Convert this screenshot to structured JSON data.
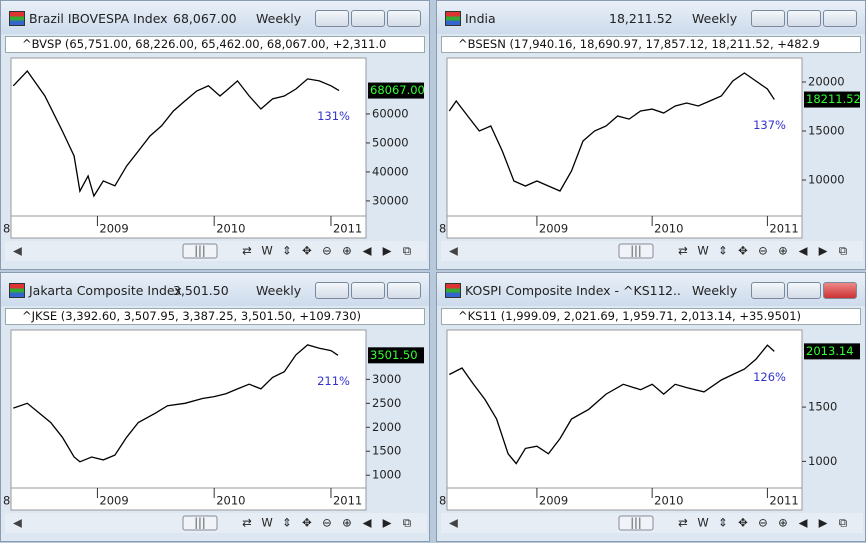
{
  "windows": [
    {
      "title": "Brazil IBOVESPA Index",
      "price": "68,067.00",
      "interval": "Weekly",
      "subheader": "^BVSP (65,751.00, 68,226.00, 65,462.00, 68,067.00, +2,311.0"
    },
    {
      "title": "India",
      "price": "18,211.52",
      "interval": "Weekly",
      "subheader": "^BSESN (17,940.16, 18,690.97, 17,857.12, 18,211.52, +482.9"
    },
    {
      "title": "Jakarta Composite Index",
      "price": "3,501.50",
      "interval": "Weekly",
      "subheader": "^JKSE (3,392.60, 3,507.95, 3,387.25, 3,501.50, +109.730)"
    },
    {
      "title": "KOSPI Composite Index - ^KS11",
      "price": "2..",
      "interval": "Weekly",
      "subheader": "^KS11 (1,999.09, 2,021.69, 1,959.71, 2,013.14, +35.9501)"
    }
  ],
  "toolbar": [
    "⇄",
    "W",
    "⇕",
    "✥",
    "⊖",
    "⊕",
    "◀",
    "▶",
    "⧉"
  ],
  "scroll_thumb": "|||",
  "chart_data": [
    {
      "type": "line",
      "color": "#000000",
      "annotation": "131%",
      "last_label": "68067.00",
      "x": [
        2008.28,
        2008.4,
        2008.55,
        2008.7,
        2008.8,
        2008.85,
        2008.92,
        2008.97,
        2009.05,
        2009.15,
        2009.25,
        2009.35,
        2009.45,
        2009.55,
        2009.65,
        2009.75,
        2009.85,
        2009.95,
        2010.05,
        2010.1,
        2010.2,
        2010.3,
        2010.4,
        2010.5,
        2010.6,
        2010.7,
        2010.8,
        2010.9,
        2011.0,
        2011.07
      ],
      "values": [
        69700,
        74800,
        66200,
        54100,
        45500,
        33400,
        38600,
        31700,
        36900,
        35200,
        42000,
        47200,
        52400,
        55900,
        61000,
        64500,
        67900,
        69700,
        66200,
        67900,
        71400,
        66200,
        61700,
        65200,
        66200,
        68600,
        72100,
        71400,
        69700,
        68067
      ],
      "xlim": [
        2008.26,
        2011.3
      ],
      "xticks": [
        {
          "value": 2008,
          "label": "8"
        },
        2009,
        2010,
        2011
      ],
      "ylim": [
        24800,
        79300
      ],
      "yticks": [
        30000,
        40000,
        50000,
        60000
      ]
    },
    {
      "type": "line",
      "color": "#000000",
      "annotation": "137%",
      "last_label": "18211.52",
      "x": [
        2008.24,
        2008.3,
        2008.4,
        2008.5,
        2008.6,
        2008.7,
        2008.8,
        2008.9,
        2009.0,
        2009.1,
        2009.2,
        2009.3,
        2009.4,
        2009.5,
        2009.6,
        2009.7,
        2009.8,
        2009.9,
        2010.0,
        2010.1,
        2010.2,
        2010.3,
        2010.4,
        2010.5,
        2010.6,
        2010.7,
        2010.8,
        2010.9,
        2011.0,
        2011.06
      ],
      "values": [
        17040,
        18060,
        16530,
        15000,
        15510,
        12960,
        9900,
        9390,
        9900,
        9390,
        8880,
        10920,
        13980,
        15000,
        15510,
        16530,
        16220,
        17040,
        17240,
        16840,
        17550,
        17860,
        17550,
        18060,
        18570,
        20100,
        20920,
        20100,
        19290,
        18211.52
      ],
      "xlim": [
        2008.22,
        2011.3
      ],
      "xticks": [
        {
          "value": 2008,
          "label": "8"
        },
        2009,
        2010,
        2011
      ],
      "ylim": [
        6330,
        22450
      ],
      "yticks": [
        10000,
        15000,
        20000
      ]
    },
    {
      "type": "line",
      "color": "#000000",
      "annotation": "211%",
      "last_label": "3501.50",
      "x": [
        2008.28,
        2008.4,
        2008.5,
        2008.6,
        2008.7,
        2008.8,
        2008.85,
        2008.95,
        2009.05,
        2009.15,
        2009.25,
        2009.35,
        2009.5,
        2009.6,
        2009.75,
        2009.9,
        2010.0,
        2010.1,
        2010.2,
        2010.3,
        2010.4,
        2010.5,
        2010.6,
        2010.7,
        2010.8,
        2010.9,
        2011.0,
        2011.06
      ],
      "values": [
        2400,
        2500,
        2300,
        2100,
        1790,
        1380,
        1280,
        1380,
        1320,
        1420,
        1790,
        2100,
        2300,
        2450,
        2500,
        2600,
        2640,
        2700,
        2800,
        2900,
        2800,
        3040,
        3160,
        3510,
        3720,
        3650,
        3600,
        3501.5
      ],
      "xlim": [
        2008.26,
        2011.3
      ],
      "xticks": [
        {
          "value": 2008,
          "label": "8"
        },
        2009,
        2010,
        2011
      ],
      "ylim": [
        733,
        4030
      ],
      "yticks": [
        1000,
        1500,
        2000,
        2500,
        3000
      ]
    },
    {
      "type": "line",
      "color": "#000000",
      "annotation": "126%",
      "last_label": "2013.14",
      "x": [
        2008.24,
        2008.35,
        2008.45,
        2008.55,
        2008.65,
        2008.75,
        2008.82,
        2008.9,
        2009.0,
        2009.1,
        2009.2,
        2009.3,
        2009.45,
        2009.6,
        2009.75,
        2009.9,
        2010.0,
        2010.1,
        2010.2,
        2010.3,
        2010.45,
        2010.6,
        2010.7,
        2010.8,
        2010.9,
        2011.0,
        2011.06
      ],
      "values": [
        1800,
        1860,
        1710,
        1570,
        1390,
        1070,
        980,
        1120,
        1140,
        1070,
        1210,
        1390,
        1480,
        1620,
        1710,
        1660,
        1710,
        1620,
        1710,
        1680,
        1640,
        1750,
        1800,
        1850,
        1940,
        2070,
        2013.14
      ],
      "xlim": [
        2008.22,
        2011.3
      ],
      "xticks": [
        {
          "value": 2008,
          "label": "8"
        },
        2009,
        2010,
        2011
      ],
      "ylim": [
        755,
        2210
      ],
      "yticks": [
        1000,
        1500
      ]
    }
  ]
}
